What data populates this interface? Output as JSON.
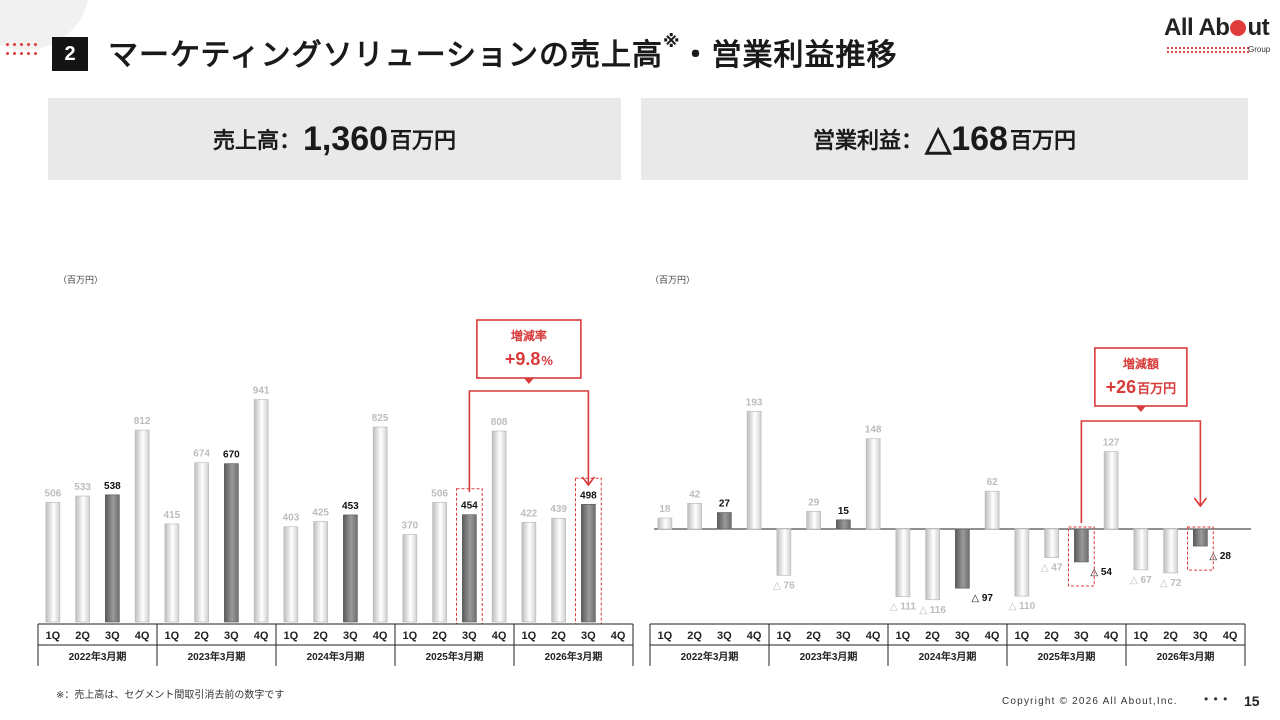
{
  "header": {
    "section_number": "2",
    "title": "マーケティングソリューションの売上高",
    "title_mark": "※",
    "title_suffix": "・営業利益推移",
    "logo_text_1": "All Ab",
    "logo_text_2": "ut",
    "logo_group": "Group"
  },
  "kpi": {
    "sales_label": "売上高：",
    "sales_value": "1,360",
    "sales_unit": "百万円",
    "profit_label": "営業利益：",
    "profit_value": "△168",
    "profit_unit": "百万円"
  },
  "footer": {
    "footnote": "※：売上高は、セグメント間取引消去前の数字です",
    "copyright": "Copyright © 2026 All About,Inc.",
    "page_dots": "• • •",
    "page": "15"
  },
  "chart_data": [
    {
      "type": "bar",
      "title": "売上高",
      "unit_label": "（百万円）",
      "categories": [
        "1Q",
        "2Q",
        "3Q",
        "4Q",
        "1Q",
        "2Q",
        "3Q",
        "4Q",
        "1Q",
        "2Q",
        "3Q",
        "4Q",
        "1Q",
        "2Q",
        "3Q",
        "4Q",
        "1Q",
        "2Q",
        "3Q",
        "4Q"
      ],
      "groups": [
        "2022年3月期",
        "2023年3月期",
        "2024年3月期",
        "2025年3月期",
        "2026年3月期"
      ],
      "values": [
        506,
        533,
        538,
        812,
        415,
        674,
        670,
        941,
        403,
        425,
        453,
        825,
        370,
        506,
        454,
        808,
        422,
        439,
        498,
        null
      ],
      "labels": [
        "506",
        "533",
        "538",
        "812",
        "415",
        "674",
        "670",
        "941",
        "403",
        "425",
        "453",
        "825",
        "370",
        "506",
        "454",
        "808",
        "422",
        "439",
        "498",
        ""
      ],
      "emphasized": [
        2,
        6,
        10,
        14,
        18
      ],
      "ylim": [
        0,
        1100
      ],
      "callout": {
        "title": "増減率",
        "value": "+9.8",
        "unit": "%",
        "from_index": 14,
        "to_index": 18
      }
    },
    {
      "type": "bar",
      "title": "営業利益",
      "unit_label": "（百万円）",
      "categories": [
        "1Q",
        "2Q",
        "3Q",
        "4Q",
        "1Q",
        "2Q",
        "3Q",
        "4Q",
        "1Q",
        "2Q",
        "3Q",
        "4Q",
        "1Q",
        "2Q",
        "3Q",
        "4Q",
        "1Q",
        "2Q",
        "3Q",
        "4Q"
      ],
      "groups": [
        "2022年3月期",
        "2023年3月期",
        "2024年3月期",
        "2025年3月期",
        "2026年3月期"
      ],
      "values": [
        18,
        42,
        27,
        193,
        -76,
        29,
        15,
        148,
        -111,
        -116,
        -97,
        62,
        -110,
        -47,
        -54,
        127,
        -67,
        -72,
        -28,
        null
      ],
      "labels": [
        "18",
        "42",
        "27",
        "193",
        "△ 76",
        "29",
        "15",
        "148",
        "△ 111",
        "△ 116",
        "△ 97",
        "62",
        "△ 110",
        "△ 47",
        "△ 54",
        "127",
        "△ 67",
        "△ 72",
        "△ 28",
        ""
      ],
      "emphasized": [
        2,
        6,
        10,
        14,
        18
      ],
      "ylim": [
        -150,
        270
      ],
      "callout": {
        "title": "増減額",
        "value": "+26",
        "unit": "百万円",
        "from_index": 14,
        "to_index": 18
      }
    }
  ]
}
